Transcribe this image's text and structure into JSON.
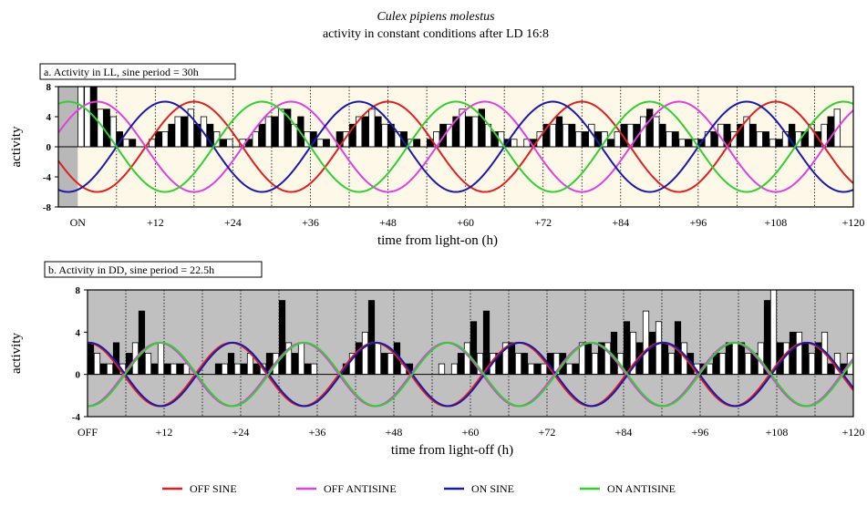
{
  "title": "Culex pipiens molestus",
  "subtitle": "activity in constant conditions after LD 16:8",
  "legend": [
    {
      "label": "OFF SINE",
      "color": "#e02020"
    },
    {
      "label": "OFF ANTISINE",
      "color": "#e040e0"
    },
    {
      "label": "ON SINE",
      "color": "#1a1aa8"
    },
    {
      "label": "ON ANTISINE",
      "color": "#30d030"
    }
  ],
  "chart_data": [
    {
      "type": "bar",
      "panel_label": "a.  Activity in LL, sine period = 30h",
      "xlabel": "time from light-on (h)",
      "ylabel": "activity",
      "xlim": [
        -3,
        120
      ],
      "ylim": [
        -8,
        8
      ],
      "yticks": [
        8,
        4,
        0,
        -4,
        -8
      ],
      "xticks": [
        {
          "v": 0,
          "label": "ON"
        },
        {
          "v": 12,
          "label": "+12"
        },
        {
          "v": 24,
          "label": "+24"
        },
        {
          "v": 36,
          "label": "+36"
        },
        {
          "v": 48,
          "label": "+48"
        },
        {
          "v": 60,
          "label": "+60"
        },
        {
          "v": 72,
          "label": "+72"
        },
        {
          "v": 84,
          "label": "+84"
        },
        {
          "v": 96,
          "label": "+96"
        },
        {
          "v": 108,
          "label": "+108"
        },
        {
          "v": 120,
          "label": "+120"
        }
      ],
      "background_color": "#fdf8e8",
      "shaded": [
        [
          -3,
          0
        ]
      ],
      "sine_period_h": 30,
      "sine_amplitude": 6,
      "curves": [
        {
          "name": "OFF SINE",
          "color": "#e02020",
          "amplitude": 6,
          "period": 30,
          "peak_at": 18
        },
        {
          "name": "OFF ANTISINE",
          "color": "#e040e0",
          "amplitude": 6,
          "period": 30,
          "peak_at": 3
        },
        {
          "name": "ON SINE",
          "color": "#1a1aa8",
          "amplitude": 6,
          "period": 30,
          "peak_at": 13.5
        },
        {
          "name": "ON ANTISINE",
          "color": "#30d030",
          "amplitude": 6,
          "period": 30,
          "peak_at": 28.5
        }
      ],
      "bin_width_h": 1,
      "bars": [
        [
          0,
          8,
          0
        ],
        [
          1,
          8,
          0
        ],
        [
          2,
          8,
          1
        ],
        [
          3,
          5,
          0
        ],
        [
          4,
          5,
          1
        ],
        [
          5,
          4,
          0
        ],
        [
          6,
          2,
          1
        ],
        [
          7,
          1,
          0
        ],
        [
          8,
          1,
          1
        ],
        [
          9,
          0,
          0
        ],
        [
          10,
          0,
          1
        ],
        [
          11,
          1,
          0
        ],
        [
          12,
          2,
          1
        ],
        [
          13,
          2,
          0
        ],
        [
          14,
          3,
          1
        ],
        [
          15,
          4,
          0
        ],
        [
          16,
          4,
          1
        ],
        [
          17,
          5,
          0
        ],
        [
          18,
          3,
          1
        ],
        [
          19,
          4,
          0
        ],
        [
          20,
          3,
          1
        ],
        [
          21,
          2,
          0
        ],
        [
          22,
          1,
          1
        ],
        [
          23,
          1,
          0
        ],
        [
          24,
          0,
          1
        ],
        [
          25,
          1,
          0
        ],
        [
          26,
          1,
          1
        ],
        [
          27,
          2,
          0
        ],
        [
          28,
          3,
          1
        ],
        [
          29,
          4,
          0
        ],
        [
          30,
          4,
          1
        ],
        [
          31,
          5,
          0
        ],
        [
          32,
          5,
          1
        ],
        [
          33,
          3,
          0
        ],
        [
          34,
          4,
          1
        ],
        [
          35,
          2,
          0
        ],
        [
          36,
          2,
          1
        ],
        [
          37,
          1,
          0
        ],
        [
          38,
          1,
          1
        ],
        [
          39,
          0,
          0
        ],
        [
          40,
          2,
          1
        ],
        [
          41,
          2,
          0
        ],
        [
          42,
          3,
          1
        ],
        [
          43,
          4,
          0
        ],
        [
          44,
          4,
          1
        ],
        [
          45,
          5,
          0
        ],
        [
          46,
          4,
          1
        ],
        [
          47,
          3,
          0
        ],
        [
          48,
          3,
          1
        ],
        [
          49,
          2,
          0
        ],
        [
          50,
          2,
          1
        ],
        [
          51,
          1,
          0
        ],
        [
          52,
          1,
          1
        ],
        [
          53,
          0,
          0
        ],
        [
          54,
          1,
          1
        ],
        [
          55,
          2,
          0
        ],
        [
          56,
          3,
          1
        ],
        [
          57,
          3,
          0
        ],
        [
          58,
          4,
          1
        ],
        [
          59,
          5,
          0
        ],
        [
          60,
          4,
          1
        ],
        [
          61,
          4,
          0
        ],
        [
          62,
          5,
          1
        ],
        [
          63,
          3,
          0
        ],
        [
          64,
          2,
          1
        ],
        [
          65,
          2,
          0
        ],
        [
          66,
          1,
          1
        ],
        [
          67,
          1,
          0
        ],
        [
          68,
          0,
          1
        ],
        [
          69,
          1,
          0
        ],
        [
          70,
          1,
          1
        ],
        [
          71,
          2,
          0
        ],
        [
          72,
          3,
          1
        ],
        [
          73,
          3,
          0
        ],
        [
          74,
          4,
          1
        ],
        [
          75,
          3,
          0
        ],
        [
          76,
          3,
          1
        ],
        [
          77,
          2,
          0
        ],
        [
          78,
          2,
          1
        ],
        [
          79,
          3,
          0
        ],
        [
          80,
          2,
          1
        ],
        [
          81,
          2,
          0
        ],
        [
          82,
          1,
          1
        ],
        [
          83,
          2,
          0
        ],
        [
          84,
          3,
          1
        ],
        [
          85,
          3,
          0
        ],
        [
          86,
          3,
          1
        ],
        [
          87,
          4,
          0
        ],
        [
          88,
          5,
          1
        ],
        [
          89,
          4,
          0
        ],
        [
          90,
          3,
          1
        ],
        [
          91,
          2,
          0
        ],
        [
          92,
          2,
          1
        ],
        [
          93,
          1,
          0
        ],
        [
          94,
          1,
          1
        ],
        [
          95,
          1,
          0
        ],
        [
          96,
          1,
          1
        ],
        [
          97,
          2,
          0
        ],
        [
          98,
          2,
          1
        ],
        [
          99,
          3,
          0
        ],
        [
          100,
          3,
          1
        ],
        [
          101,
          2,
          0
        ],
        [
          102,
          3,
          1
        ],
        [
          103,
          4,
          0
        ],
        [
          104,
          3,
          1
        ],
        [
          105,
          2,
          0
        ],
        [
          106,
          2,
          1
        ],
        [
          107,
          1,
          0
        ],
        [
          108,
          1,
          1
        ],
        [
          109,
          2,
          0
        ],
        [
          110,
          3,
          1
        ],
        [
          111,
          2,
          0
        ],
        [
          112,
          2,
          1
        ],
        [
          113,
          3,
          0
        ],
        [
          114,
          2,
          1
        ],
        [
          115,
          3,
          0
        ],
        [
          116,
          4,
          1
        ],
        [
          117,
          5,
          0
        ]
      ]
    },
    {
      "type": "bar",
      "panel_label": "b. Activity in DD, sine period = 22.5h",
      "xlabel": "time from light-off (h)",
      "ylabel": "activity",
      "xlim": [
        0,
        120
      ],
      "ylim": [
        -4,
        8
      ],
      "yticks": [
        8,
        4,
        0,
        -4
      ],
      "xticks": [
        {
          "v": 0,
          "label": "OFF"
        },
        {
          "v": 12,
          "label": "+12"
        },
        {
          "v": 24,
          "label": "+24"
        },
        {
          "v": 36,
          "label": "+36"
        },
        {
          "v": 48,
          "label": "+48"
        },
        {
          "v": 60,
          "label": "+60"
        },
        {
          "v": 72,
          "label": "+72"
        },
        {
          "v": 84,
          "label": "+84"
        },
        {
          "v": 96,
          "label": "+96"
        },
        {
          "v": 108,
          "label": "+108"
        },
        {
          "v": 120,
          "label": "+120"
        }
      ],
      "background_color": "#c0c0c0",
      "shaded": [],
      "sine_period_h": 22.5,
      "sine_amplitude": 3,
      "curves": [
        {
          "name": "OFF SINE",
          "color": "#e02020",
          "amplitude": 3,
          "period": 22.5,
          "peak_at": 0
        },
        {
          "name": "OFF ANTISINE",
          "color": "#e040e0",
          "amplitude": 3,
          "period": 22.5,
          "peak_at": 11.25
        },
        {
          "name": "ON SINE",
          "color": "#1a1aa8",
          "amplitude": 3,
          "period": 22.5,
          "peak_at": 0.3
        },
        {
          "name": "ON ANTISINE",
          "color": "#30d030",
          "amplitude": 3,
          "period": 22.5,
          "peak_at": 11.5
        }
      ],
      "bin_width_h": 1,
      "bars": [
        [
          0,
          3,
          1
        ],
        [
          1,
          2,
          0
        ],
        [
          2,
          1,
          1
        ],
        [
          3,
          1,
          0
        ],
        [
          4,
          3,
          1
        ],
        [
          5,
          1,
          0
        ],
        [
          6,
          2,
          1
        ],
        [
          7,
          3,
          0
        ],
        [
          8,
          6,
          1
        ],
        [
          9,
          2,
          0
        ],
        [
          10,
          1,
          1
        ],
        [
          11,
          3,
          0
        ],
        [
          12,
          1,
          1
        ],
        [
          13,
          1,
          0
        ],
        [
          14,
          1,
          1
        ],
        [
          15,
          1,
          0
        ],
        [
          16,
          0,
          1
        ],
        [
          17,
          0,
          0
        ],
        [
          18,
          0,
          1
        ],
        [
          19,
          0,
          0
        ],
        [
          20,
          1,
          1
        ],
        [
          21,
          1,
          0
        ],
        [
          22,
          2,
          1
        ],
        [
          23,
          1,
          0
        ],
        [
          24,
          1,
          1
        ],
        [
          25,
          2,
          0
        ],
        [
          26,
          1,
          1
        ],
        [
          27,
          1,
          0
        ],
        [
          28,
          2,
          1
        ],
        [
          29,
          2,
          0
        ],
        [
          30,
          7,
          1
        ],
        [
          31,
          3,
          0
        ],
        [
          32,
          2,
          1
        ],
        [
          33,
          3,
          0
        ],
        [
          34,
          1,
          1
        ],
        [
          35,
          1,
          0
        ],
        [
          36,
          0,
          1
        ],
        [
          37,
          0,
          0
        ],
        [
          38,
          0,
          1
        ],
        [
          39,
          0,
          0
        ],
        [
          40,
          1,
          1
        ],
        [
          41,
          2,
          0
        ],
        [
          42,
          3,
          1
        ],
        [
          43,
          4,
          0
        ],
        [
          44,
          7,
          1
        ],
        [
          45,
          3,
          0
        ],
        [
          46,
          2,
          1
        ],
        [
          47,
          2,
          0
        ],
        [
          48,
          3,
          1
        ],
        [
          49,
          1,
          0
        ],
        [
          50,
          1,
          1
        ],
        [
          51,
          0,
          0
        ],
        [
          52,
          0,
          1
        ],
        [
          53,
          0,
          0
        ],
        [
          54,
          0,
          1
        ],
        [
          55,
          1,
          0
        ],
        [
          56,
          0,
          1
        ],
        [
          57,
          1,
          0
        ],
        [
          58,
          2,
          1
        ],
        [
          59,
          3,
          0
        ],
        [
          60,
          5,
          1
        ],
        [
          61,
          2,
          0
        ],
        [
          62,
          6,
          1
        ],
        [
          63,
          2,
          0
        ],
        [
          64,
          2,
          1
        ],
        [
          65,
          3,
          0
        ],
        [
          66,
          3,
          1
        ],
        [
          67,
          2,
          0
        ],
        [
          68,
          2,
          1
        ],
        [
          69,
          1,
          0
        ],
        [
          70,
          1,
          1
        ],
        [
          71,
          1,
          0
        ],
        [
          72,
          2,
          1
        ],
        [
          73,
          2,
          0
        ],
        [
          74,
          2,
          1
        ],
        [
          75,
          1,
          0
        ],
        [
          76,
          1,
          1
        ],
        [
          77,
          3,
          0
        ],
        [
          78,
          3,
          1
        ],
        [
          79,
          2,
          0
        ],
        [
          80,
          3,
          1
        ],
        [
          81,
          3,
          0
        ],
        [
          82,
          4,
          1
        ],
        [
          83,
          2,
          0
        ],
        [
          84,
          5,
          1
        ],
        [
          85,
          4,
          0
        ],
        [
          86,
          3,
          1
        ],
        [
          87,
          6,
          0
        ],
        [
          88,
          4,
          1
        ],
        [
          89,
          5,
          0
        ],
        [
          90,
          3,
          1
        ],
        [
          91,
          2,
          0
        ],
        [
          92,
          5,
          1
        ],
        [
          93,
          3,
          0
        ],
        [
          94,
          2,
          1
        ],
        [
          95,
          1,
          0
        ],
        [
          96,
          1,
          1
        ],
        [
          97,
          1,
          0
        ],
        [
          98,
          2,
          1
        ],
        [
          99,
          2,
          0
        ],
        [
          100,
          3,
          1
        ],
        [
          101,
          3,
          0
        ],
        [
          102,
          3,
          1
        ],
        [
          103,
          2,
          0
        ],
        [
          104,
          2,
          1
        ],
        [
          105,
          3,
          0
        ],
        [
          106,
          7,
          1
        ],
        [
          107,
          8,
          0
        ],
        [
          108,
          3,
          1
        ],
        [
          109,
          3,
          0
        ],
        [
          110,
          4,
          1
        ],
        [
          111,
          4,
          0
        ],
        [
          112,
          3,
          1
        ],
        [
          113,
          2,
          0
        ],
        [
          114,
          3,
          1
        ],
        [
          115,
          4,
          0
        ],
        [
          116,
          1,
          1
        ],
        [
          117,
          2,
          0
        ],
        [
          118,
          1,
          1
        ],
        [
          119,
          2,
          0
        ]
      ]
    }
  ]
}
